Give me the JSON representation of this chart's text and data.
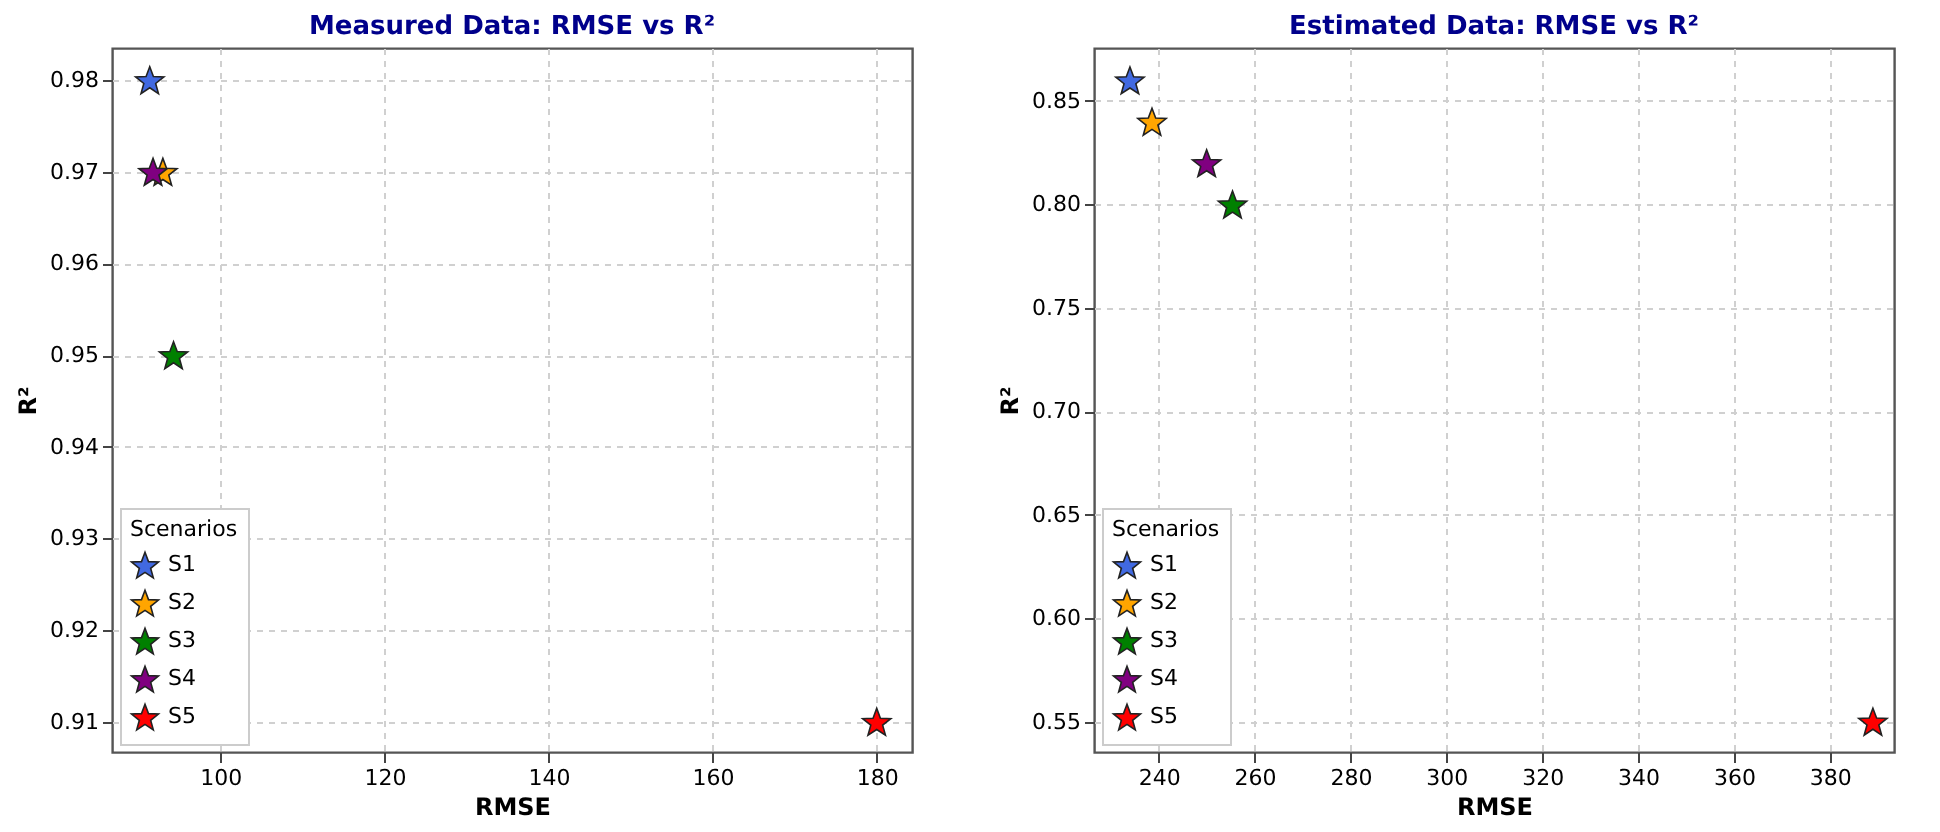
{
  "chart_data": [
    {
      "type": "scatter",
      "title": "Measured Data: RMSE vs R²",
      "xlabel": "RMSE",
      "ylabel": "R²",
      "legend_title": "Scenarios",
      "legend": "bottom left",
      "grid": true,
      "marker": "star",
      "xlim": [
        86.8,
        184.3
      ],
      "xticks": [
        100,
        120,
        140,
        160,
        180
      ],
      "ylim": [
        0.9067,
        0.9835
      ],
      "yticks": [
        0.91,
        0.92,
        0.93,
        0.94,
        0.95,
        0.96,
        0.97,
        0.98
      ],
      "series": [
        {
          "name": "S1",
          "color": "#4169e1",
          "x": [
            91.4
          ],
          "values": [
            0.98
          ]
        },
        {
          "name": "S2",
          "color": "#ffa500",
          "x": [
            93
          ],
          "values": [
            0.97
          ]
        },
        {
          "name": "S3",
          "color": "#008000",
          "x": [
            94.3
          ],
          "values": [
            0.95
          ]
        },
        {
          "name": "S4",
          "color": "#800080",
          "x": [
            91.8
          ],
          "values": [
            0.97
          ]
        },
        {
          "name": "S5",
          "color": "#ff0000",
          "x": [
            180
          ],
          "values": [
            0.91
          ]
        }
      ]
    },
    {
      "type": "scatter",
      "title": "Estimated Data: RMSE vs R²",
      "xlabel": "RMSE",
      "ylabel": "R²",
      "legend_title": "Scenarios",
      "legend": "bottom left",
      "grid": true,
      "marker": "star",
      "xlim": [
        226.5,
        393.4
      ],
      "xticks": [
        240,
        260,
        280,
        300,
        320,
        340,
        360,
        380
      ],
      "ylim": [
        0.5353,
        0.8756
      ],
      "yticks": [
        0.55,
        {
          "value": 0.6,
          "label": "0.60"
        },
        0.65,
        {
          "value": 0.7,
          "label": "0.70"
        },
        0.75,
        {
          "value": 0.8,
          "label": "0.80"
        },
        0.85
      ],
      "series": [
        {
          "name": "S1",
          "color": "#4169e1",
          "x": [
            234
          ],
          "values": [
            0.86
          ]
        },
        {
          "name": "S2",
          "color": "#ffa500",
          "x": [
            238.6
          ],
          "values": [
            0.84
          ]
        },
        {
          "name": "S3",
          "color": "#008000",
          "x": [
            255.4
          ],
          "values": [
            0.8
          ]
        },
        {
          "name": "S4",
          "color": "#800080",
          "x": [
            250
          ],
          "values": [
            0.82
          ]
        },
        {
          "name": "S5",
          "color": "#ff0000",
          "x": [
            389
          ],
          "values": [
            0.55
          ]
        }
      ]
    }
  ]
}
